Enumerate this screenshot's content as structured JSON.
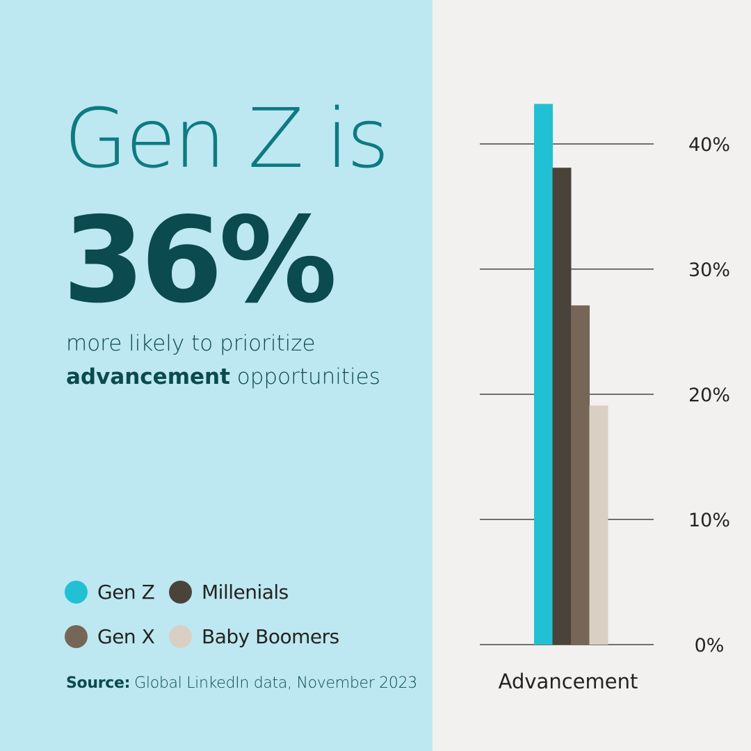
{
  "headline": {
    "line1": "Gen Z is",
    "stat": "36%",
    "subtitle_line1": "more likely to prioritize",
    "subtitle_emphasis": "advancement",
    "subtitle_rest": "opportunities"
  },
  "source": {
    "label": "Source:",
    "text": "Global LinkedIn data, November 2023"
  },
  "colors": {
    "left_background": "#bde8f1",
    "right_background": "#f2f1ef",
    "headline_teal": "#0e7a82",
    "dark_teal": "#0b4a4e"
  },
  "chart_data": {
    "type": "bar",
    "categories": [
      "Advancement"
    ],
    "xlabel": "Advancement",
    "ylabel": "",
    "ylim": [
      0,
      40
    ],
    "y_ticks": [
      "0%",
      "10%",
      "20%",
      "30%",
      "40%"
    ],
    "y_tick_values": [
      0,
      10,
      20,
      30,
      40
    ],
    "grid": true,
    "legend_position": "bottom-left",
    "series": [
      {
        "name": "Gen Z",
        "values": [
          43.2
        ],
        "color": "#22c0d3"
      },
      {
        "name": "Millenials",
        "values": [
          38.1
        ],
        "color": "#4a433a"
      },
      {
        "name": "Gen X",
        "values": [
          27.1
        ],
        "color": "#756658"
      },
      {
        "name": "Baby Boomers",
        "values": [
          19.1
        ],
        "color": "#d9d0c3"
      }
    ]
  }
}
